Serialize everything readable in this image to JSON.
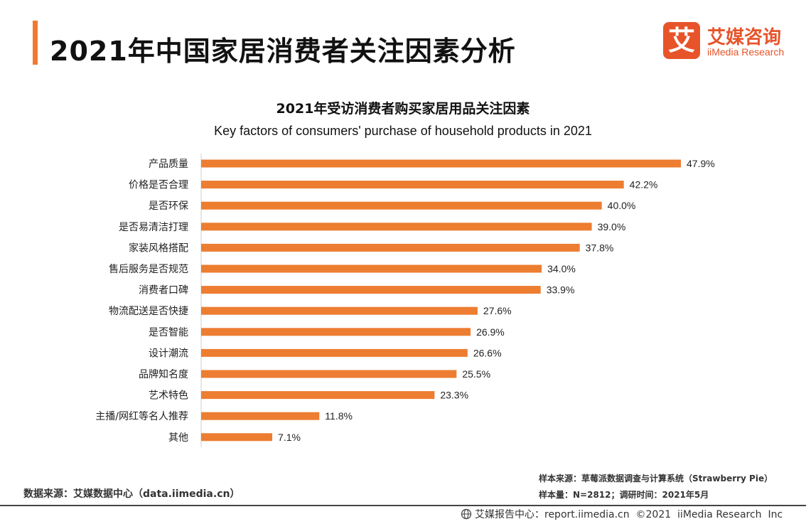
{
  "page_title": "2021年中国家居消费者关注因素分析",
  "logo": {
    "mark": "艾",
    "name_cn": "艾媒咨询",
    "name_en": "iiMedia Research",
    "icon": "iimedia-logo-icon"
  },
  "chart_data": {
    "type": "bar",
    "orientation": "horizontal",
    "title": "2021年受访消费者购买家居用品关注因素",
    "subtitle": "Key factors of consumers' purchase of household products in 2021",
    "categories": [
      "产品质量",
      "价格是否合理",
      "是否环保",
      "是否易清洁打理",
      "家装风格搭配",
      "售后服务是否规范",
      "消费者口碑",
      "物流配送是否快捷",
      "是否智能",
      "设计潮流",
      "品牌知名度",
      "艺术特色",
      "主播/网红等名人推荐",
      "其他"
    ],
    "values": [
      47.9,
      42.2,
      40.0,
      39.0,
      37.8,
      34.0,
      33.9,
      27.6,
      26.9,
      26.6,
      25.5,
      23.3,
      11.8,
      7.1
    ],
    "value_labels": [
      "47.9%",
      "42.2%",
      "40.0%",
      "39.0%",
      "37.8%",
      "34.0%",
      "33.9%",
      "27.6%",
      "26.9%",
      "26.6%",
      "25.5%",
      "23.3%",
      "11.8%",
      "7.1%"
    ],
    "unit": "%",
    "xlim": [
      0,
      50
    ],
    "grid": false,
    "legend": "none",
    "bar_color": "#ed7d31"
  },
  "notes": {
    "sample_source": "样本来源：草莓派数据调查与计算系统（Strawberry Pie）",
    "sample_size": "样本量：N=2812；调研时间：2021年5月"
  },
  "source": "数据来源：艾媒数据中心（data.iimedia.cn）",
  "footer": {
    "icon": "globe-icon",
    "text": "艾媒报告中心：report.iimedia.cn  ©2021  iiMedia Research  Inc"
  },
  "colors": {
    "accent": "#f07a2f",
    "brand": "#e8542a"
  }
}
